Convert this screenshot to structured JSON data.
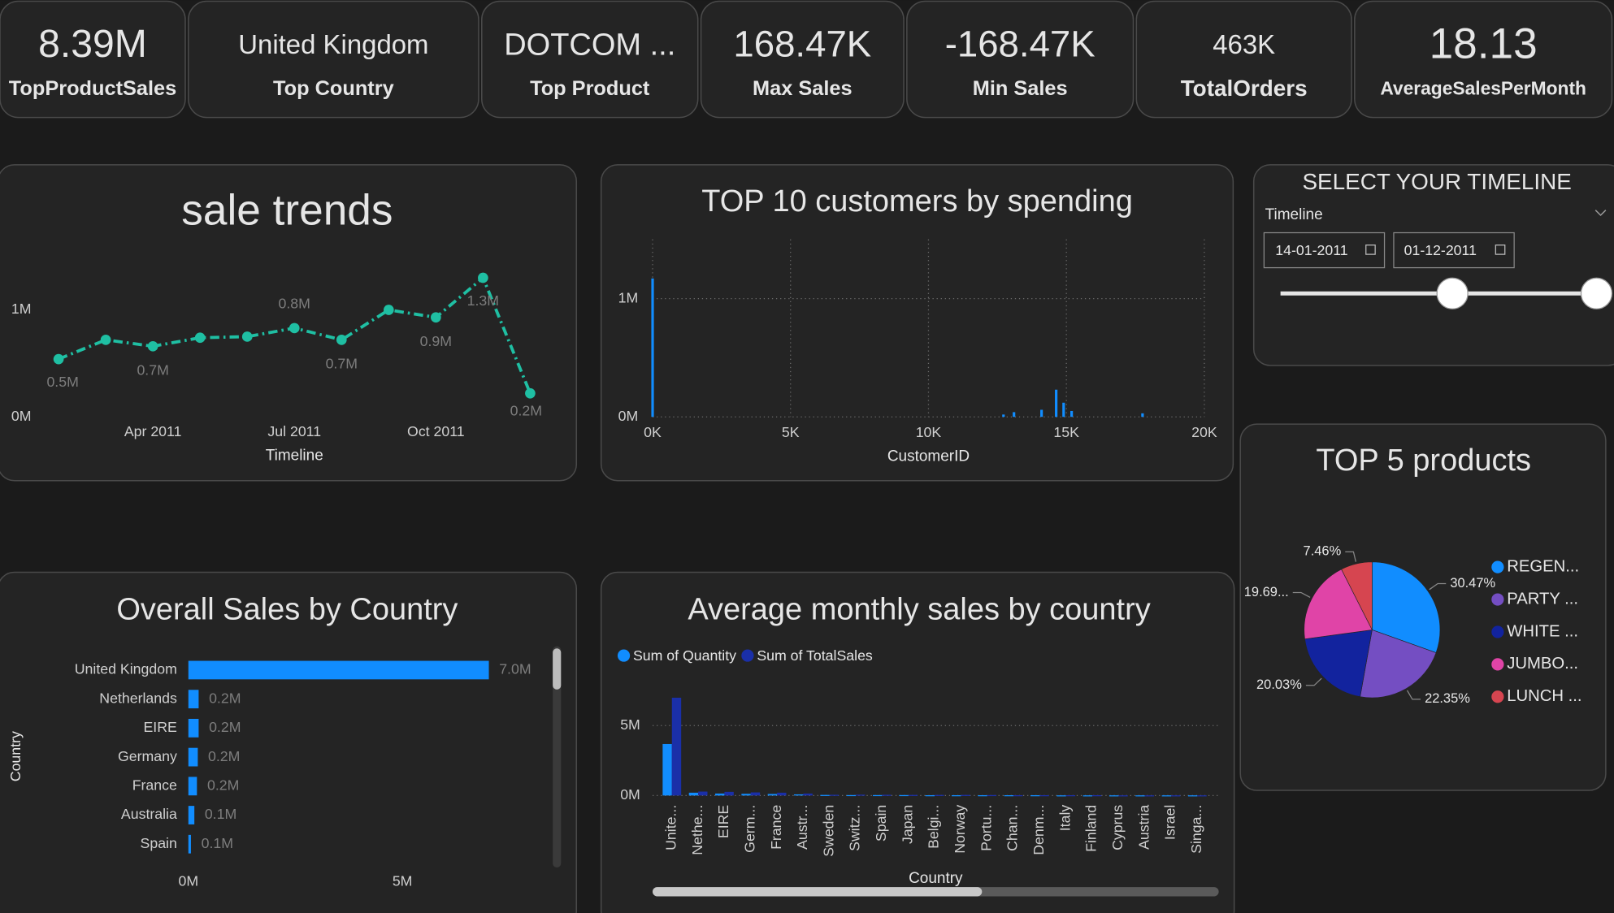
{
  "kpis": [
    {
      "value": "8.39M",
      "label": "TopProductSales"
    },
    {
      "value": "United Kingdom",
      "label": "Top Country"
    },
    {
      "value": "DOTCOM ...",
      "label": "Top Product"
    },
    {
      "value": "168.47K",
      "label": "Max Sales"
    },
    {
      "value": "-168.47K",
      "label": "Min Sales"
    },
    {
      "value": "463K",
      "label": "TotalOrders"
    },
    {
      "value": "18.13",
      "label": "AverageSalesPerMonth"
    }
  ],
  "slicer": {
    "title": "SELECT YOUR TIMELINE",
    "label": "Timeline",
    "start": "14-01-2011",
    "end": "01-12-2011"
  },
  "chart_data": [
    {
      "type": "line",
      "title": "sale trends",
      "x_label": "Timeline",
      "x": [
        "Feb 2011",
        "Mar 2011",
        "Apr 2011",
        "May 2011",
        "Jun 2011",
        "Jul 2011",
        "Aug 2011",
        "Sep 2011",
        "Oct 2011",
        "Nov 2011",
        "Dec 2011"
      ],
      "values": [
        0.54,
        0.72,
        0.66,
        0.74,
        0.75,
        0.83,
        0.72,
        1.0,
        0.93,
        1.3,
        0.22
      ],
      "value_labels": [
        "0.5M",
        null,
        "0.7M",
        null,
        null,
        "0.8M",
        "0.7M",
        null,
        "0.9M",
        "1.3M",
        "0.2M"
      ],
      "color": "#1fbfa3",
      "xticks": [
        "Apr 2011",
        "Jul 2011",
        "Oct 2011"
      ],
      "ylim": [
        0,
        1.5
      ],
      "yticks": [
        {
          "value": 0,
          "label": "0M"
        },
        {
          "value": 1,
          "label": "1M"
        }
      ]
    },
    {
      "type": "bar",
      "title": "TOP 10 customers by spending",
      "x_label": "CustomerID",
      "x": [
        0,
        12720,
        13100,
        14100,
        14630,
        14900,
        15190,
        17760
      ],
      "values": [
        1.17,
        0.02,
        0.04,
        0.06,
        0.23,
        0.12,
        0.05,
        0.03
      ],
      "color": "#118dff",
      "xlim": [
        0,
        20000
      ],
      "xticks": [
        {
          "value": 0,
          "label": "0K"
        },
        {
          "value": 5000,
          "label": "5K"
        },
        {
          "value": 10000,
          "label": "10K"
        },
        {
          "value": 15000,
          "label": "15K"
        },
        {
          "value": 20000,
          "label": "20K"
        }
      ],
      "ylim": [
        0,
        1.5
      ],
      "yticks": [
        {
          "value": 0,
          "label": "0M"
        },
        {
          "value": 1,
          "label": "1M"
        }
      ],
      "grid": true
    },
    {
      "type": "barh",
      "title": "Overall Sales by Country",
      "y_label": "Country",
      "categories": [
        "United Kingdom",
        "Netherlands",
        "EIRE",
        "Germany",
        "France",
        "Australia",
        "Spain"
      ],
      "values": [
        7.02,
        0.24,
        0.24,
        0.22,
        0.2,
        0.14,
        0.06
      ],
      "value_labels": [
        "7.0M",
        "0.2M",
        "0.2M",
        "0.2M",
        "0.2M",
        "0.1M",
        "0.1M"
      ],
      "color": "#118dff",
      "xlim": [
        0,
        8.2
      ],
      "xticks": [
        {
          "value": 0,
          "label": "0M"
        },
        {
          "value": 5,
          "label": "5M"
        }
      ]
    },
    {
      "type": "grouped",
      "title": "Average monthly sales by country",
      "x_label": "Country",
      "categories": [
        "Unite...",
        "Nethe...",
        "EIRE",
        "Germ...",
        "France",
        "Austr...",
        "Sweden",
        "Switz...",
        "Spain",
        "Japan",
        "Belgi...",
        "Norway",
        "Portu...",
        "Chan...",
        "Denm...",
        "Italy",
        "Finland",
        "Cyprus",
        "Austria",
        "Israel",
        "Singa..."
      ],
      "series": [
        {
          "name": "Sum of Quantity",
          "color": "#118dff",
          "values": [
            3.68,
            0.2,
            0.14,
            0.12,
            0.11,
            0.08,
            0.04,
            0.03,
            0.03,
            0.03,
            0.02,
            0.02,
            0.02,
            0.02,
            0.02,
            0.01,
            0.01,
            0.01,
            0.01,
            0.01,
            0.01
          ]
        },
        {
          "name": "Sum of TotalSales",
          "color": "#1a2fa8",
          "values": [
            6.99,
            0.28,
            0.26,
            0.22,
            0.2,
            0.14,
            0.05,
            0.06,
            0.05,
            0.04,
            0.04,
            0.04,
            0.03,
            0.02,
            0.02,
            0.02,
            0.02,
            0.01,
            0.01,
            0.01,
            0.01
          ]
        }
      ],
      "ylim": [
        0,
        8.7
      ],
      "yticks": [
        {
          "value": 0,
          "label": "0M"
        },
        {
          "value": 5,
          "label": "5M"
        }
      ],
      "grid": true
    },
    {
      "type": "pie",
      "title": "TOP 5 products",
      "categories": [
        "REGEN...",
        "PARTY ...",
        "WHITE ...",
        "JUMBO...",
        "LUNCH ..."
      ],
      "values": [
        30.47,
        22.35,
        20.03,
        19.69,
        7.46
      ],
      "value_labels": [
        "30.47%",
        "22.35%",
        "20.03%",
        "19.69...",
        "7.46%"
      ],
      "colors": [
        "#118dff",
        "#744ec2",
        "#12239e",
        "#e044a7",
        "#d64550"
      ]
    }
  ]
}
